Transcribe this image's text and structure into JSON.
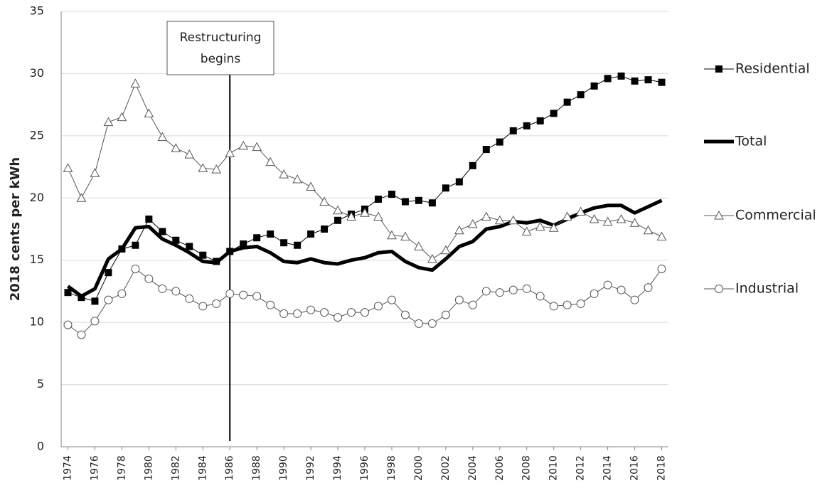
{
  "chart_data": {
    "type": "line",
    "y_label": "2018 cents per kWh",
    "annotation": {
      "text": [
        "Restructuring",
        "begins"
      ],
      "x": 1986
    },
    "x": [
      1974,
      1975,
      1976,
      1977,
      1978,
      1979,
      1980,
      1981,
      1982,
      1983,
      1984,
      1985,
      1986,
      1987,
      1988,
      1989,
      1990,
      1991,
      1992,
      1993,
      1994,
      1995,
      1996,
      1997,
      1998,
      1999,
      2000,
      2001,
      2002,
      2003,
      2004,
      2005,
      2006,
      2007,
      2008,
      2009,
      2010,
      2011,
      2012,
      2013,
      2014,
      2015,
      2016,
      2017,
      2018
    ],
    "xlim": [
      1973.5,
      2018.5
    ],
    "xticks": [
      1974,
      1976,
      1978,
      1980,
      1982,
      1984,
      1986,
      1988,
      1990,
      1992,
      1994,
      1996,
      1998,
      2000,
      2002,
      2004,
      2006,
      2008,
      2010,
      2012,
      2014,
      2016,
      2018
    ],
    "ylim": [
      0,
      35
    ],
    "yticks": [
      0,
      5,
      10,
      15,
      20,
      25,
      30,
      35
    ],
    "grid": true,
    "series": [
      {
        "name": "Residential",
        "color": "#000000",
        "marker": "square",
        "line_width": 1,
        "values": [
          12.4,
          12.0,
          11.7,
          14.0,
          15.9,
          16.2,
          18.3,
          17.3,
          16.6,
          16.1,
          15.4,
          14.9,
          15.7,
          16.3,
          16.8,
          17.1,
          16.4,
          16.2,
          17.1,
          17.5,
          18.2,
          18.7,
          19.1,
          19.9,
          20.3,
          19.7,
          19.8,
          19.6,
          20.8,
          21.3,
          22.6,
          23.9,
          24.5,
          25.4,
          25.8,
          26.2,
          26.8,
          27.7,
          28.3,
          29.0,
          29.6,
          29.8,
          29.4,
          29.5,
          29.3
        ]
      },
      {
        "name": "Total",
        "color": "#000000",
        "marker": "none",
        "line_width": 5,
        "values": [
          12.9,
          12.1,
          12.7,
          15.1,
          15.9,
          17.6,
          17.7,
          16.7,
          16.2,
          15.6,
          14.9,
          14.8,
          15.7,
          16.0,
          16.1,
          15.6,
          14.9,
          14.8,
          15.1,
          14.8,
          14.7,
          15.0,
          15.2,
          15.6,
          15.7,
          14.9,
          14.4,
          14.2,
          15.1,
          16.1,
          16.5,
          17.5,
          17.7,
          18.1,
          18.0,
          18.2,
          17.8,
          18.3,
          18.8,
          19.2,
          19.4,
          19.4,
          18.8,
          19.3,
          19.8
        ]
      },
      {
        "name": "Commercial",
        "color": "#555555",
        "marker": "triangle",
        "line_width": 1,
        "values": [
          22.4,
          20.0,
          22.0,
          26.1,
          26.5,
          29.2,
          26.8,
          24.9,
          24.0,
          23.5,
          22.4,
          22.3,
          23.6,
          24.2,
          24.1,
          22.9,
          21.9,
          21.5,
          20.9,
          19.7,
          19.0,
          18.5,
          18.8,
          18.5,
          17.0,
          16.9,
          16.1,
          15.1,
          15.8,
          17.4,
          17.9,
          18.5,
          18.2,
          18.2,
          17.3,
          17.7,
          17.6,
          18.5,
          18.9,
          18.3,
          18.1,
          18.3,
          18.0,
          17.4,
          16.9
        ]
      },
      {
        "name": "Industrial",
        "color": "#555555",
        "marker": "circle",
        "line_width": 1,
        "values": [
          9.8,
          9.0,
          10.1,
          11.8,
          12.3,
          14.3,
          13.5,
          12.7,
          12.5,
          11.9,
          11.3,
          11.5,
          12.3,
          12.2,
          12.1,
          11.4,
          10.7,
          10.7,
          11.0,
          10.8,
          10.4,
          10.8,
          10.8,
          11.3,
          11.8,
          10.6,
          9.9,
          9.9,
          10.6,
          11.8,
          11.4,
          12.5,
          12.4,
          12.6,
          12.7,
          12.1,
          11.3,
          11.4,
          11.5,
          12.3,
          13.0,
          12.6,
          11.8,
          12.8,
          14.3
        ]
      }
    ]
  }
}
